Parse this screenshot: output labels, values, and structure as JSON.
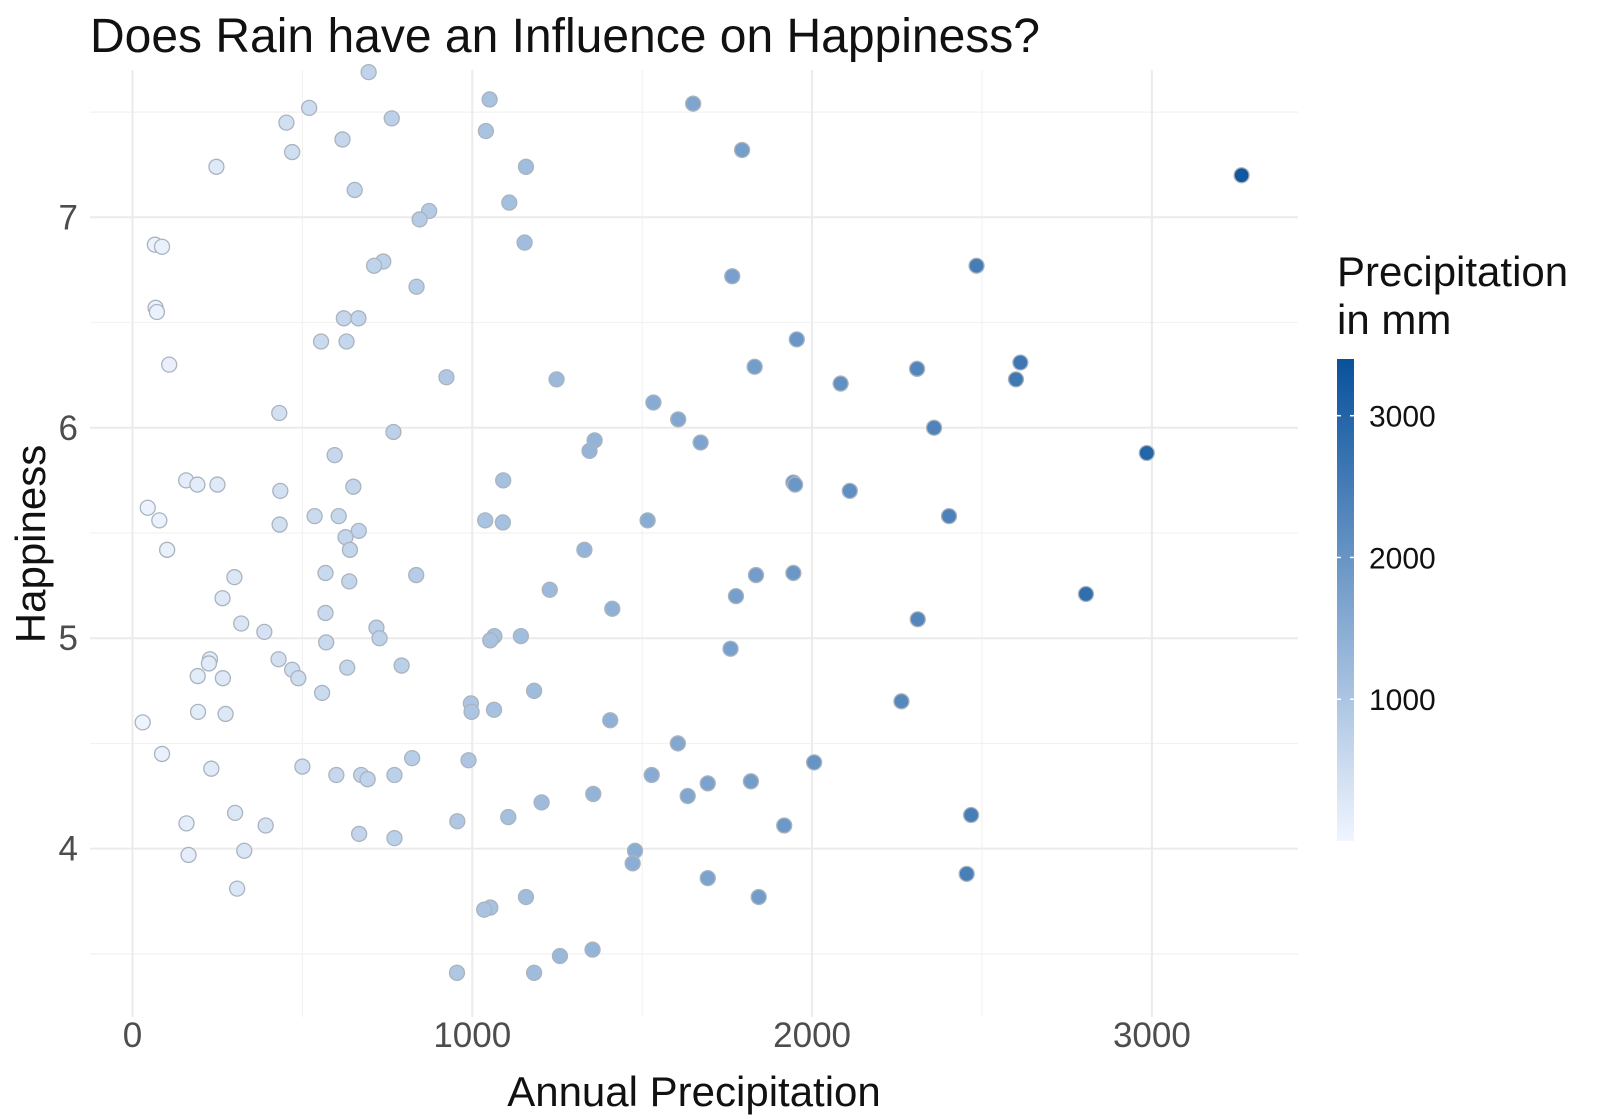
{
  "chart_data": {
    "type": "scatter",
    "title": "Does Rain have an Influence on Happiness?",
    "xlabel": "Annual Precipitation",
    "ylabel": "Happiness",
    "xlim": [
      -125,
      3430
    ],
    "ylim": [
      3.2,
      7.7
    ],
    "x_ticks": [
      0,
      1000,
      2000,
      3000
    ],
    "x_tick_labels": [
      "0",
      "1000",
      "2000",
      "3000"
    ],
    "y_ticks": [
      4,
      5,
      6,
      7
    ],
    "y_tick_labels": [
      "4",
      "5",
      "6",
      "7"
    ],
    "grid": true,
    "legend": {
      "title_lines": [
        "Precipitation",
        "in mm"
      ],
      "position": "right",
      "ticks": [
        1000,
        2000,
        3000
      ],
      "tick_labels": [
        "1000",
        "2000",
        "3000"
      ],
      "range": [
        0,
        3400
      ],
      "color_low": "#f0f5ff",
      "color_high": "#08519c"
    },
    "point_stroke": "#a9b4bf",
    "points": [
      [
        695,
        7.69
      ],
      [
        1051,
        7.56
      ],
      [
        1650,
        7.54
      ],
      [
        520,
        7.52
      ],
      [
        453,
        7.45
      ],
      [
        763,
        7.47
      ],
      [
        1040,
        7.41
      ],
      [
        618,
        7.37
      ],
      [
        470,
        7.31
      ],
      [
        1794,
        7.32
      ],
      [
        247,
        7.24
      ],
      [
        1158,
        7.24
      ],
      [
        3264,
        7.2
      ],
      [
        654,
        7.13
      ],
      [
        1109,
        7.07
      ],
      [
        873,
        7.03
      ],
      [
        845,
        6.99
      ],
      [
        66,
        6.87
      ],
      [
        87,
        6.86
      ],
      [
        1154,
        6.88
      ],
      [
        738,
        6.79
      ],
      [
        711,
        6.77
      ],
      [
        2484,
        6.77
      ],
      [
        1765,
        6.72
      ],
      [
        836,
        6.67
      ],
      [
        68,
        6.57
      ],
      [
        72,
        6.55
      ],
      [
        622,
        6.52
      ],
      [
        665,
        6.52
      ],
      [
        555,
        6.41
      ],
      [
        630,
        6.41
      ],
      [
        1955,
        6.42
      ],
      [
        2613,
        6.31
      ],
      [
        108,
        6.3
      ],
      [
        1831,
        6.29
      ],
      [
        2309,
        6.28
      ],
      [
        924,
        6.24
      ],
      [
        1248,
        6.23
      ],
      [
        2600,
        6.23
      ],
      [
        2084,
        6.21
      ],
      [
        1533,
        6.12
      ],
      [
        432,
        6.07
      ],
      [
        1606,
        6.04
      ],
      [
        2359,
        6.0
      ],
      [
        768,
        5.98
      ],
      [
        1360,
        5.94
      ],
      [
        1672,
        5.93
      ],
      [
        1345,
        5.89
      ],
      [
        595,
        5.87
      ],
      [
        2985,
        5.88
      ],
      [
        158,
        5.75
      ],
      [
        191,
        5.73
      ],
      [
        250,
        5.73
      ],
      [
        1091,
        5.75
      ],
      [
        1945,
        5.74
      ],
      [
        650,
        5.72
      ],
      [
        435,
        5.7
      ],
      [
        1950,
        5.73
      ],
      [
        2111,
        5.7
      ],
      [
        2403,
        5.58
      ],
      [
        536,
        5.58
      ],
      [
        607,
        5.58
      ],
      [
        45,
        5.62
      ],
      [
        79,
        5.56
      ],
      [
        1038,
        5.56
      ],
      [
        1090,
        5.55
      ],
      [
        1516,
        5.56
      ],
      [
        433,
        5.54
      ],
      [
        666,
        5.51
      ],
      [
        627,
        5.48
      ],
      [
        640,
        5.42
      ],
      [
        102,
        5.42
      ],
      [
        1330,
        5.42
      ],
      [
        568,
        5.31
      ],
      [
        1945,
        5.31
      ],
      [
        835,
        5.3
      ],
      [
        1835,
        5.3
      ],
      [
        300,
        5.29
      ],
      [
        638,
        5.27
      ],
      [
        1228,
        5.23
      ],
      [
        2806,
        5.21
      ],
      [
        1776,
        5.2
      ],
      [
        265,
        5.19
      ],
      [
        1412,
        5.14
      ],
      [
        568,
        5.12
      ],
      [
        2311,
        5.09
      ],
      [
        320,
        5.07
      ],
      [
        718,
        5.05
      ],
      [
        388,
        5.03
      ],
      [
        1143,
        5.01
      ],
      [
        1065,
        5.01
      ],
      [
        1053,
        4.99
      ],
      [
        727,
        5.0
      ],
      [
        570,
        4.98
      ],
      [
        1760,
        4.95
      ],
      [
        228,
        4.9
      ],
      [
        430,
        4.9
      ],
      [
        225,
        4.88
      ],
      [
        792,
        4.87
      ],
      [
        632,
        4.86
      ],
      [
        470,
        4.85
      ],
      [
        192,
        4.82
      ],
      [
        488,
        4.81
      ],
      [
        266,
        4.81
      ],
      [
        558,
        4.74
      ],
      [
        1182,
        4.75
      ],
      [
        996,
        4.69
      ],
      [
        2263,
        4.7
      ],
      [
        998,
        4.65
      ],
      [
        1064,
        4.66
      ],
      [
        193,
        4.65
      ],
      [
        274,
        4.64
      ],
      [
        1406,
        4.61
      ],
      [
        30,
        4.6
      ],
      [
        1605,
        4.5
      ],
      [
        87,
        4.45
      ],
      [
        989,
        4.42
      ],
      [
        823,
        4.43
      ],
      [
        2006,
        4.41
      ],
      [
        232,
        4.38
      ],
      [
        500,
        4.39
      ],
      [
        600,
        4.35
      ],
      [
        673,
        4.35
      ],
      [
        771,
        4.35
      ],
      [
        1528,
        4.35
      ],
      [
        692,
        4.33
      ],
      [
        1693,
        4.31
      ],
      [
        1820,
        4.32
      ],
      [
        1356,
        4.26
      ],
      [
        1634,
        4.25
      ],
      [
        1204,
        4.22
      ],
      [
        302,
        4.17
      ],
      [
        1106,
        4.15
      ],
      [
        2468,
        4.16
      ],
      [
        956,
        4.13
      ],
      [
        159,
        4.12
      ],
      [
        392,
        4.11
      ],
      [
        1918,
        4.11
      ],
      [
        667,
        4.07
      ],
      [
        771,
        4.05
      ],
      [
        329,
        3.99
      ],
      [
        1479,
        3.99
      ],
      [
        165,
        3.97
      ],
      [
        1472,
        3.93
      ],
      [
        1693,
        3.86
      ],
      [
        2455,
        3.88
      ],
      [
        308,
        3.81
      ],
      [
        1158,
        3.77
      ],
      [
        1843,
        3.77
      ],
      [
        1053,
        3.72
      ],
      [
        1035,
        3.71
      ],
      [
        1354,
        3.52
      ],
      [
        1258,
        3.49
      ],
      [
        955,
        3.41
      ],
      [
        1182,
        3.41
      ]
    ]
  }
}
